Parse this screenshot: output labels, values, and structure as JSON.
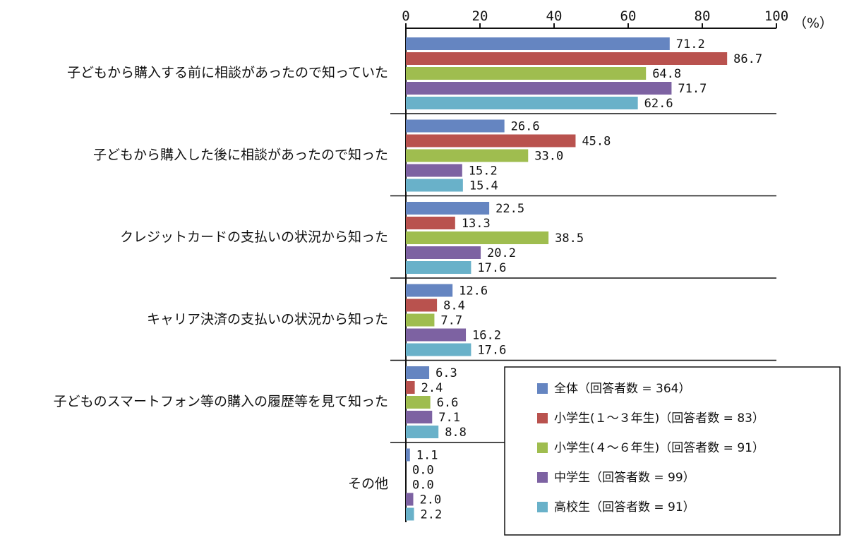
{
  "chart_data": {
    "type": "bar",
    "orientation": "horizontal",
    "unit_label": "（%）",
    "xlim": [
      0,
      100
    ],
    "x_ticks": [
      "0",
      "20",
      "40",
      "60",
      "80",
      "100"
    ],
    "categories": [
      "子どもから購入する前に相談があったので知っていた",
      "子どもから購入した後に相談があったので知った",
      "クレジットカードの支払いの状況から知った",
      "キャリア決済の支払いの状況から知った",
      "子どものスマートフォン等の購入の履歴等を見て知った",
      "その他"
    ],
    "series": [
      {
        "name": "全体（回答者数 = 364）",
        "color": "#6585c1",
        "values": [
          71.2,
          26.6,
          22.5,
          12.6,
          6.3,
          1.1
        ]
      },
      {
        "name": "小学生(１～３年生)（回答者数 = 83）",
        "color": "#b9524e",
        "values": [
          86.7,
          45.8,
          13.3,
          8.4,
          2.4,
          0.0
        ]
      },
      {
        "name": "小学生(４～６年生)（回答者数 = 91）",
        "color": "#9fbd4f",
        "values": [
          64.8,
          33.0,
          38.5,
          7.7,
          6.6,
          0.0
        ]
      },
      {
        "name": "中学生（回答者数 = 99）",
        "color": "#7d62a2",
        "values": [
          71.7,
          15.2,
          20.2,
          16.2,
          7.1,
          2.0
        ]
      },
      {
        "name": "高校生（回答者数 = 91）",
        "color": "#69b1c9",
        "values": [
          62.6,
          15.4,
          17.6,
          17.6,
          8.8,
          2.2
        ]
      }
    ],
    "legend_position": "bottom-right",
    "grid": false
  }
}
